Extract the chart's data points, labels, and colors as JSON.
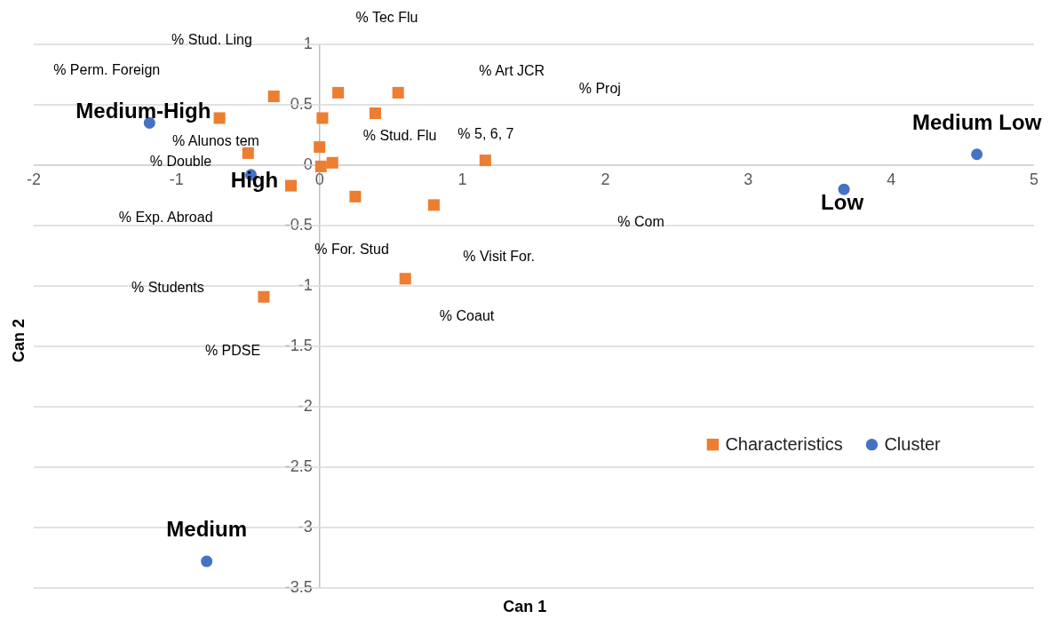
{
  "chart_data": {
    "type": "scatter",
    "xlabel": "Can 1",
    "ylabel": "Can 2",
    "xlim": [
      -2,
      5
    ],
    "xticks": [
      -2,
      -1,
      0,
      1,
      2,
      3,
      4,
      5
    ],
    "ylim": [
      -3.5,
      1
    ],
    "yticks": [
      -3.5,
      -3,
      -2.5,
      -2,
      -1.5,
      -1,
      -0.5,
      0,
      0.5,
      1
    ],
    "grid": "y",
    "legend": "bottom right",
    "series": [
      {
        "name": "Characteristics",
        "color": "#ed7d31",
        "marker": "square",
        "x": [
          -0.32,
          0.13,
          0.55,
          -0.7,
          0.02,
          0.39,
          0.0,
          -0.5,
          0.01,
          0.09,
          1.16,
          -0.2,
          0.25,
          0.8,
          0.6,
          -0.39
        ],
        "values": [
          0.57,
          0.6,
          0.6,
          0.39,
          0.39,
          0.43,
          0.15,
          0.1,
          -0.01,
          0.02,
          0.04,
          -0.17,
          -0.26,
          -0.33,
          -0.94,
          -1.09
        ]
      },
      {
        "name": "Cluster",
        "color": "#4472c4",
        "marker": "circle",
        "x": [
          -1.19,
          -0.48,
          4.6,
          3.67,
          -0.79
        ],
        "values": [
          0.35,
          -0.08,
          0.09,
          -0.2,
          -3.28
        ],
        "value_labels": [
          "Medium-High",
          "High",
          "Medium Low",
          "Low",
          "Medium"
        ]
      }
    ],
    "annotations": [
      "% Tec Flu",
      "% Stud. Ling",
      "% Perm.  Foreign",
      "% Art JCR",
      "% Proj",
      "% Alunos tem",
      "% Stud. Flu",
      "% 5, 6, 7",
      "% Double",
      "% Exp. Abroad",
      "% Com",
      "% For. Stud",
      "% Visit For.",
      "% Students",
      "% Coaut",
      "% PDSE"
    ]
  }
}
